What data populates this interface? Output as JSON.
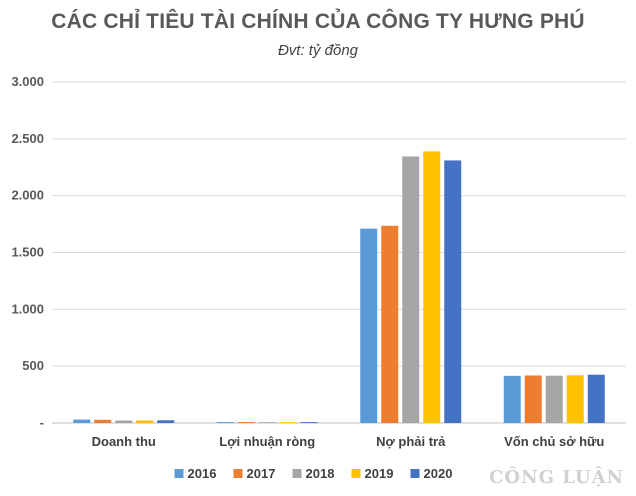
{
  "chart_data": {
    "type": "bar",
    "title": "CÁC CHỈ TIÊU TÀI CHÍNH CỦA CÔNG TY HƯNG PHÚ",
    "subtitle": "Đvt: tỷ đồng",
    "categories": [
      "Doanh thu",
      "Lợi nhuận ròng",
      "Nợ phải trả",
      "Vốn chủ sở hữu"
    ],
    "series": [
      {
        "name": "2016",
        "color": "#5B9BD5",
        "values": [
          30,
          8,
          1710,
          415
        ]
      },
      {
        "name": "2017",
        "color": "#ED7D31",
        "values": [
          28,
          8,
          1735,
          418
        ]
      },
      {
        "name": "2018",
        "color": "#A5A5A5",
        "values": [
          22,
          7,
          2345,
          416
        ]
      },
      {
        "name": "2019",
        "color": "#FFC000",
        "values": [
          22,
          8,
          2390,
          420
        ]
      },
      {
        "name": "2020",
        "color": "#4472C4",
        "values": [
          24,
          8,
          2310,
          425
        ]
      }
    ],
    "yticks": [
      "-",
      "500",
      "1.000",
      "1.500",
      "2.000",
      "2.500",
      "3.000"
    ],
    "ylim": [
      0,
      3000
    ],
    "grid": true,
    "legend": "bottom"
  },
  "watermark": "CÔNG LUẬN"
}
